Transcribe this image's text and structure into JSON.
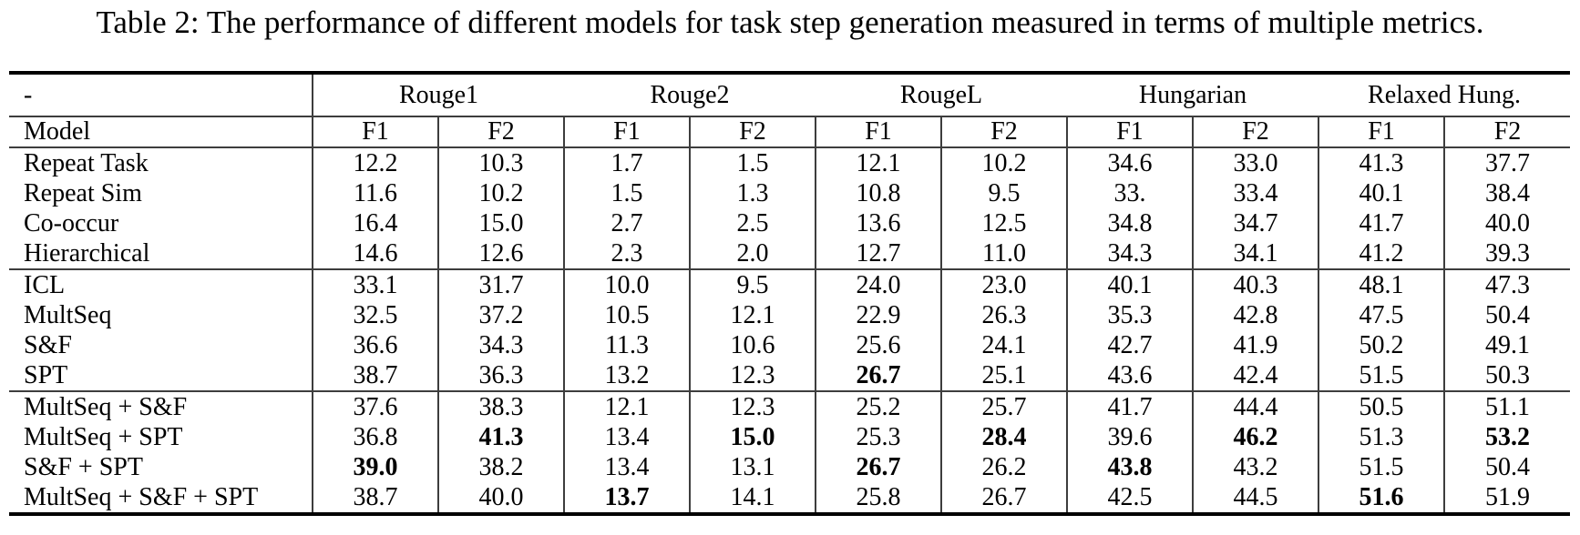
{
  "caption": "Table 2: The performance of different models for task step generation measured in terms of multiple metrics.",
  "table": {
    "corner_label": "-",
    "model_column_header": "Model",
    "metric_groups": [
      {
        "label": "Rouge1",
        "sub": [
          "F1",
          "F2"
        ]
      },
      {
        "label": "Rouge2",
        "sub": [
          "F1",
          "F2"
        ]
      },
      {
        "label": "RougeL",
        "sub": [
          "F1",
          "F2"
        ]
      },
      {
        "label": "Hungarian",
        "sub": [
          "F1",
          "F2"
        ]
      },
      {
        "label": "Relaxed Hung.",
        "sub": [
          "F1",
          "F2"
        ]
      }
    ],
    "sections": [
      {
        "rows": [
          {
            "model": "Repeat Task",
            "values": [
              "12.2",
              "10.3",
              "1.7",
              "1.5",
              "12.1",
              "10.2",
              "34.6",
              "33.0",
              "41.3",
              "37.7"
            ],
            "bold": []
          },
          {
            "model": "Repeat Sim",
            "values": [
              "11.6",
              "10.2",
              "1.5",
              "1.3",
              "10.8",
              "9.5",
              "33.",
              "33.4",
              "40.1",
              "38.4"
            ],
            "bold": []
          },
          {
            "model": "Co-occur",
            "values": [
              "16.4",
              "15.0",
              "2.7",
              "2.5",
              "13.6",
              "12.5",
              "34.8",
              "34.7",
              "41.7",
              "40.0"
            ],
            "bold": []
          },
          {
            "model": "Hierarchical",
            "values": [
              "14.6",
              "12.6",
              "2.3",
              "2.0",
              "12.7",
              "11.0",
              "34.3",
              "34.1",
              "41.2",
              "39.3"
            ],
            "bold": []
          }
        ]
      },
      {
        "rows": [
          {
            "model": "ICL",
            "values": [
              "33.1",
              "31.7",
              "10.0",
              "9.5",
              "24.0",
              "23.0",
              "40.1",
              "40.3",
              "48.1",
              "47.3"
            ],
            "bold": []
          },
          {
            "model": "MultSeq",
            "values": [
              "32.5",
              "37.2",
              "10.5",
              "12.1",
              "22.9",
              "26.3",
              "35.3",
              "42.8",
              "47.5",
              "50.4"
            ],
            "bold": []
          },
          {
            "model": "S&F",
            "values": [
              "36.6",
              "34.3",
              "11.3",
              "10.6",
              "25.6",
              "24.1",
              "42.7",
              "41.9",
              "50.2",
              "49.1"
            ],
            "bold": []
          },
          {
            "model": "SPT",
            "values": [
              "38.7",
              "36.3",
              "13.2",
              "12.3",
              "26.7",
              "25.1",
              "43.6",
              "42.4",
              "51.5",
              "50.3"
            ],
            "bold": [
              4
            ]
          }
        ]
      },
      {
        "rows": [
          {
            "model": "MultSeq + S&F",
            "values": [
              "37.6",
              "38.3",
              "12.1",
              "12.3",
              "25.2",
              "25.7",
              "41.7",
              "44.4",
              "50.5",
              "51.1"
            ],
            "bold": []
          },
          {
            "model": "MultSeq + SPT",
            "values": [
              "36.8",
              "41.3",
              "13.4",
              "15.0",
              "25.3",
              "28.4",
              "39.6",
              "46.2",
              "51.3",
              "53.2"
            ],
            "bold": [
              1,
              3,
              5,
              7,
              9
            ]
          },
          {
            "model": "S&F + SPT",
            "values": [
              "39.0",
              "38.2",
              "13.4",
              "13.1",
              "26.7",
              "26.2",
              "43.8",
              "43.2",
              "51.5",
              "50.4"
            ],
            "bold": [
              0,
              4,
              6
            ]
          },
          {
            "model": "MultSeq + S&F + SPT",
            "values": [
              "38.7",
              "40.0",
              "13.7",
              "14.1",
              "25.8",
              "26.7",
              "42.5",
              "44.5",
              "51.6",
              "51.9"
            ],
            "bold": [
              2,
              8
            ]
          }
        ]
      }
    ]
  },
  "colors": {
    "background": "#ffffff",
    "text": "#000000",
    "rule_thick": "#000000",
    "rule_thin": "#3d3d3d"
  }
}
